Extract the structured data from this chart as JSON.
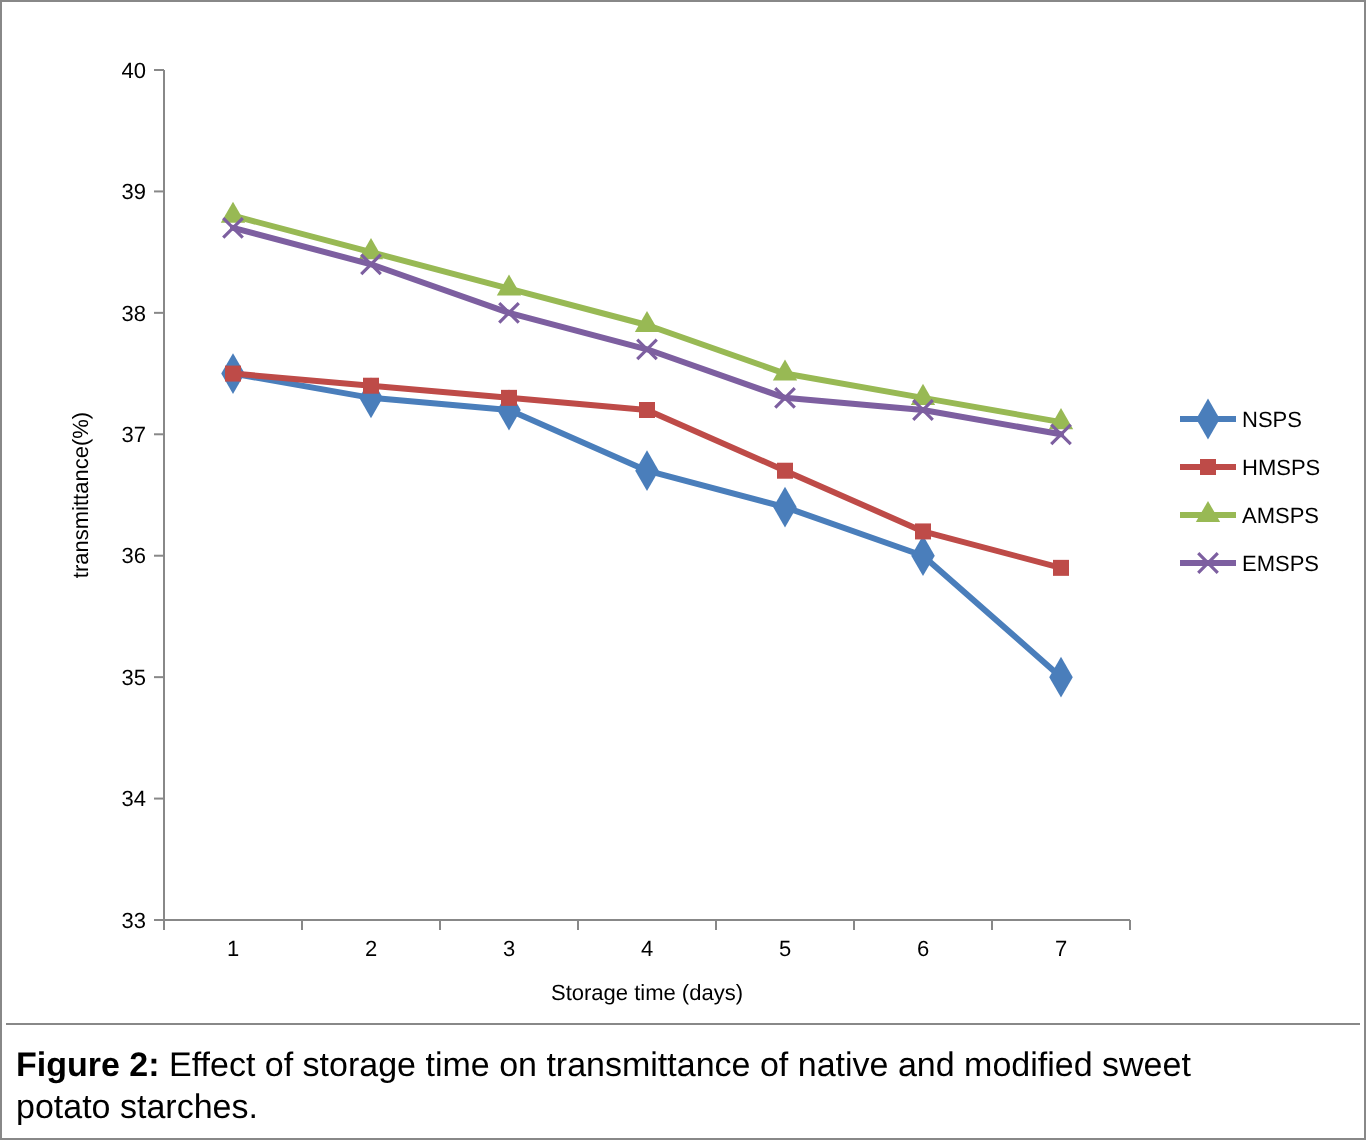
{
  "chart_data": {
    "type": "line",
    "xlabel": "Storage time (days)",
    "ylabel": "transmittance(%)",
    "categories": [
      "1",
      "2",
      "3",
      "4",
      "5",
      "6",
      "7"
    ],
    "series": [
      {
        "name": "NSPS",
        "color": "#4a7ebb",
        "marker": "diamond",
        "values": [
          37.5,
          37.3,
          37.2,
          36.7,
          36.4,
          36.0,
          35.0
        ]
      },
      {
        "name": "HMSPS",
        "color": "#be4b48",
        "marker": "square",
        "values": [
          37.5,
          37.4,
          37.3,
          37.2,
          36.7,
          36.2,
          35.9
        ]
      },
      {
        "name": "AMSPS",
        "color": "#98b954",
        "marker": "triangle",
        "values": [
          38.8,
          38.5,
          38.2,
          37.9,
          37.5,
          37.3,
          37.1
        ]
      },
      {
        "name": "EMSPS",
        "color": "#7d5fa0",
        "marker": "cross",
        "values": [
          38.7,
          38.4,
          38.0,
          37.7,
          37.3,
          37.2,
          37.0
        ]
      }
    ],
    "ylim": [
      33,
      40
    ],
    "yticks": [
      33,
      34,
      35,
      36,
      37,
      38,
      39,
      40
    ],
    "grid": false,
    "legend": "right",
    "line_style": "solid",
    "annotations": [
      "Figure 2: Effect of storage time on transmittance of native and modified sweet potato starches."
    ]
  }
}
